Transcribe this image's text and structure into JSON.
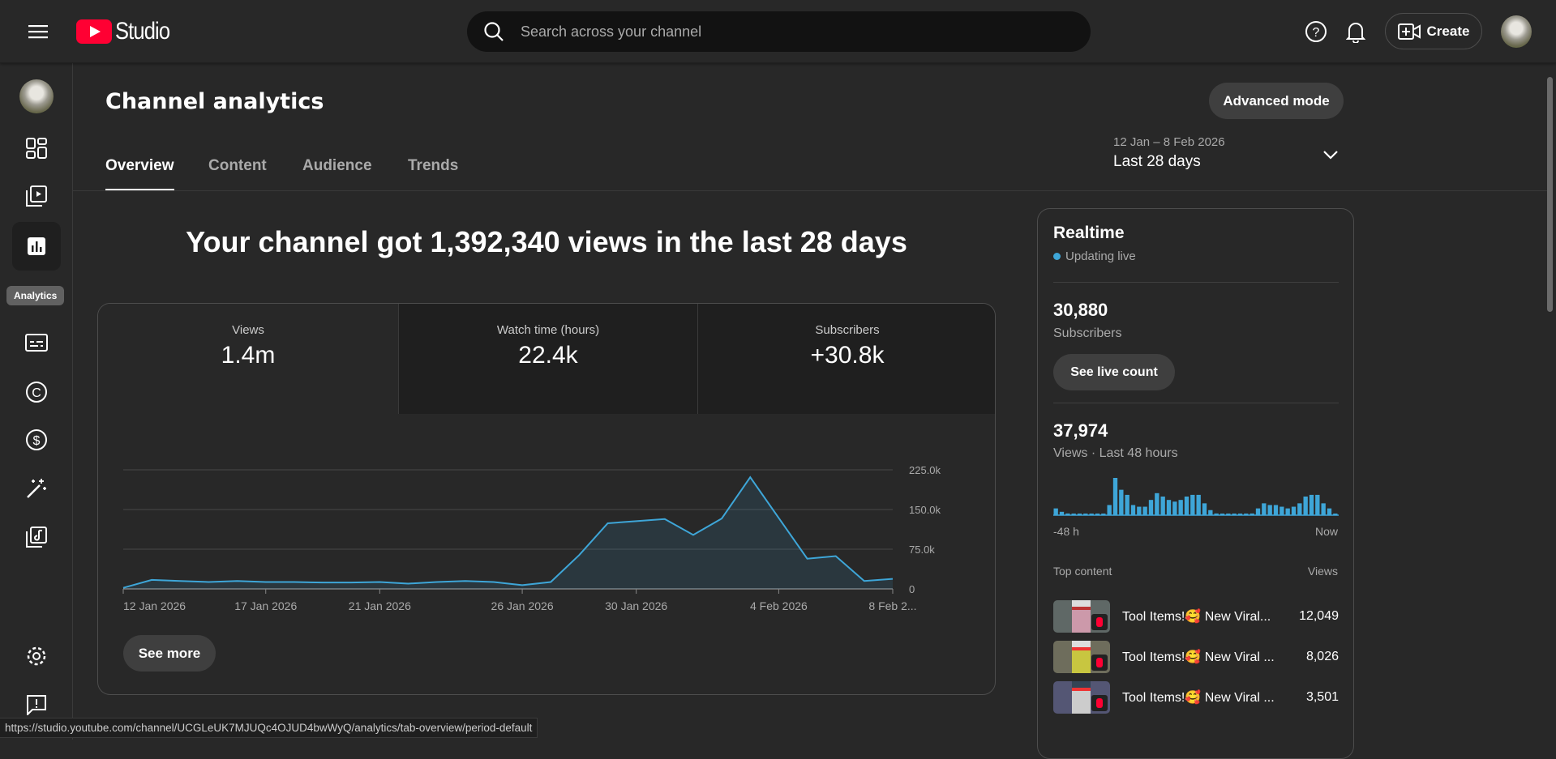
{
  "header": {
    "logo_text": "Studio",
    "search_placeholder": "Search across your channel",
    "create_label": "Create"
  },
  "sidebar": {
    "tooltip": "Analytics"
  },
  "page": {
    "title": "Channel analytics",
    "advanced_mode": "Advanced mode",
    "date_range": "12 Jan – 8 Feb 2026",
    "period": "Last 28 days",
    "tabs": [
      {
        "label": "Overview"
      },
      {
        "label": "Content"
      },
      {
        "label": "Audience"
      },
      {
        "label": "Trends"
      }
    ],
    "headline": "Your channel got 1,392,340 views in the last 28 days"
  },
  "metrics": [
    {
      "label": "Views",
      "value": "1.4m"
    },
    {
      "label": "Watch time (hours)",
      "value": "22.4k"
    },
    {
      "label": "Subscribers",
      "value": "+30.8k"
    }
  ],
  "see_more": "See more",
  "chart_data": {
    "type": "area",
    "title": "Views",
    "ylim": [
      0,
      225000
    ],
    "yticks": [
      "225.0k",
      "150.0k",
      "75.0k",
      "0"
    ],
    "ytick_values": [
      225000,
      150000,
      75000,
      0
    ],
    "xticks": [
      "12 Jan 2026",
      "17 Jan 2026",
      "21 Jan 2026",
      "26 Jan 2026",
      "30 Jan 2026",
      "4 Feb 2026",
      "8 Feb 2..."
    ],
    "xtick_index": [
      0,
      5,
      9,
      14,
      18,
      23,
      27
    ],
    "values": [
      2000,
      17000,
      15000,
      13000,
      15000,
      13000,
      13000,
      12000,
      12000,
      13000,
      10000,
      13000,
      15000,
      13000,
      7000,
      13000,
      64000,
      124000,
      128000,
      132000,
      102000,
      133000,
      211000,
      134000,
      57000,
      62000,
      15000,
      19000
    ],
    "color": "#3ea6d8"
  },
  "realtime": {
    "title": "Realtime",
    "live": "Updating live",
    "subs_value": "30,880",
    "subs_label": "Subscribers",
    "see_live": "See live count",
    "views_value": "37,974",
    "views_label": "Views · Last 48 hours",
    "start_label": "-48 h",
    "end_label": "Now",
    "hourly_views": [
      4,
      2,
      1,
      0.5,
      0.5,
      0.5,
      0.5,
      0.5,
      0.5,
      6,
      22,
      15,
      12,
      6,
      5,
      5,
      9,
      13,
      11,
      9,
      8,
      9,
      11,
      12,
      12,
      7,
      3,
      1,
      0.5,
      0.5,
      0.5,
      0.5,
      0.5,
      1,
      4,
      7,
      6,
      6,
      5,
      4,
      5,
      7,
      11,
      12,
      12,
      7,
      4,
      0.5
    ],
    "top_content_label": "Top content",
    "views_col": "Views",
    "top_content": [
      {
        "title": "Tool Items!🥰 New Viral...",
        "views": "12,049"
      },
      {
        "title": "Tool Items!🥰 New Viral ...",
        "views": "8,026"
      },
      {
        "title": "Tool Items!🥰 New Viral ...",
        "views": "3,501"
      }
    ]
  },
  "status_url": "https://studio.youtube.com/channel/UCGLeUK7MJUQc4OJUD4bwWyQ/analytics/tab-overview/period-default"
}
